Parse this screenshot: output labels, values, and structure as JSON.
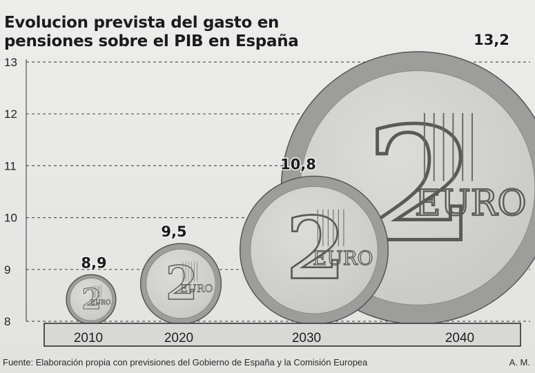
{
  "title": "Evolucion prevista del gasto en pensiones sobre el PIB en España",
  "footer": {
    "source": "Fuente: Elaboración propia con previsiones del Gobierno de España y la Comisión Europea",
    "author": "A. M."
  },
  "chart_data": {
    "type": "bar",
    "title": "Evolucion prevista del gasto en pensiones sobre el PIB en España",
    "categories": [
      "2010",
      "2020",
      "2030",
      "2040"
    ],
    "values": [
      8.9,
      9.5,
      10.8,
      13.2
    ],
    "value_labels": [
      "8,9",
      "9,5",
      "10,8",
      "13,2"
    ],
    "ylim": [
      8,
      13
    ],
    "yticks": [
      8,
      9,
      10,
      11,
      12,
      13
    ],
    "xlabel": "",
    "ylabel": "",
    "grid": true,
    "legend": "none",
    "mark_style": "euro-coin",
    "coin_text": "EURO",
    "coin_numeral": "2",
    "colors": {
      "coin_face": "#c9c9c7",
      "coin_rim": "#9d9d9b",
      "coin_outline": "#555555",
      "grid": "#555555",
      "axis_band": "#d8d8d6"
    }
  }
}
